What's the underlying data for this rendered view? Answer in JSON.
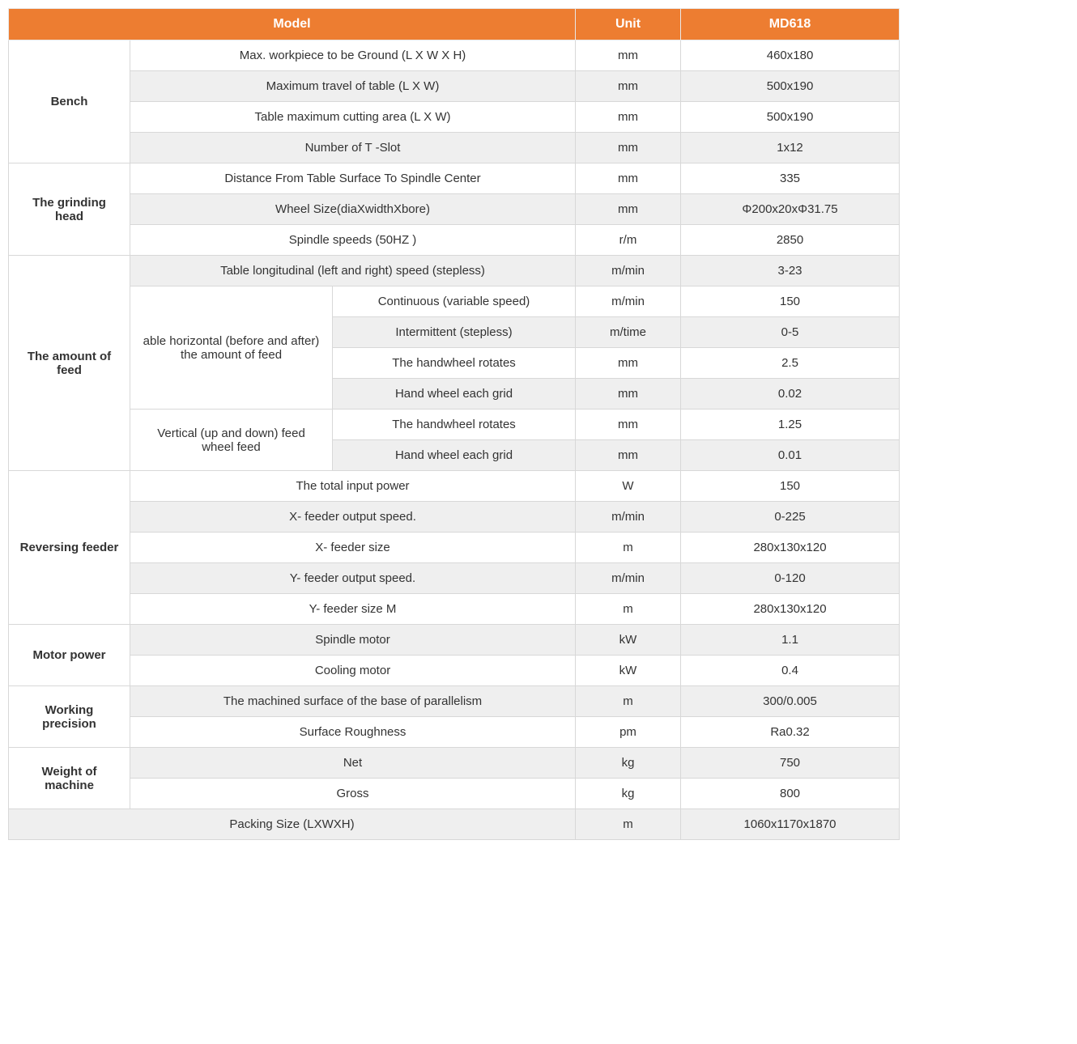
{
  "header": {
    "model": "Model",
    "unit": "Unit",
    "product": "MD618"
  },
  "colors": {
    "header_bg": "#ed7d31",
    "header_text": "#ffffff",
    "border": "#d8d8d8",
    "shaded_bg": "#efefef",
    "text": "#333333"
  },
  "sections": {
    "bench": {
      "label": "Bench",
      "rows": [
        {
          "param": "Max. workpiece to be Ground (L X W X H)",
          "unit": "mm",
          "value": "460x180",
          "shaded": false
        },
        {
          "param": "Maximum travel of table (L X W)",
          "unit": "mm",
          "value": "500x190",
          "shaded": true
        },
        {
          "param": "Table maximum cutting area (L X W)",
          "unit": "mm",
          "value": "500x190",
          "shaded": false
        },
        {
          "param": "Number of T -Slot",
          "unit": "mm",
          "value": "1x12",
          "shaded": true
        }
      ]
    },
    "grinding_head": {
      "label": "The grinding head",
      "rows": [
        {
          "param": "Distance From Table Surface To Spindle Center",
          "unit": "mm",
          "value": "335",
          "shaded": false
        },
        {
          "param": "Wheel Size(diaXwidthXbore)",
          "unit": "mm",
          "value": "Φ200x20xΦ31.75",
          "shaded": true
        },
        {
          "param": "Spindle speeds (50HZ )",
          "unit": "r/m",
          "value": "2850",
          "shaded": false
        }
      ]
    },
    "amount_of_feed": {
      "label": "The amount of feed",
      "longitudinal": {
        "param": "Table longitudinal (left and right) speed (stepless)",
        "unit": "m/min",
        "value": "3-23",
        "shaded": true
      },
      "horizontal_label": "able horizontal (before and after) the amount of feed",
      "horizontal_rows": [
        {
          "param": "Continuous (variable speed)",
          "unit": "m/min",
          "value": "150",
          "shaded": false
        },
        {
          "param": "Intermittent (stepless)",
          "unit": "m/time",
          "value": "0-5",
          "shaded": true
        },
        {
          "param": "The handwheel rotates",
          "unit": "mm",
          "value": "2.5",
          "shaded": false
        },
        {
          "param": "Hand wheel each grid",
          "unit": "mm",
          "value": "0.02",
          "shaded": true
        }
      ],
      "vertical_label": "Vertical (up and down) feed wheel feed",
      "vertical_rows": [
        {
          "param": "The handwheel rotates",
          "unit": "mm",
          "value": "1.25",
          "shaded": false
        },
        {
          "param": "Hand wheel each grid",
          "unit": "mm",
          "value": "0.01",
          "shaded": true
        }
      ]
    },
    "reversing_feeder": {
      "label": "Reversing feeder",
      "rows": [
        {
          "param": "The total input power",
          "unit": "W",
          "value": "150",
          "shaded": false
        },
        {
          "param": "X- feeder output speed.",
          "unit": "m/min",
          "value": "0-225",
          "shaded": true
        },
        {
          "param": "X- feeder size",
          "unit": "m",
          "value": "280x130x120",
          "shaded": false
        },
        {
          "param": "Y- feeder output speed.",
          "unit": "m/min",
          "value": "0-120",
          "shaded": true
        },
        {
          "param": "Y- feeder size M",
          "unit": "m",
          "value": "280x130x120",
          "shaded": false
        }
      ]
    },
    "motor_power": {
      "label": "Motor power",
      "rows": [
        {
          "param": "Spindle motor",
          "unit": "kW",
          "value": "1.1",
          "shaded": true
        },
        {
          "param": "Cooling motor",
          "unit": "kW",
          "value": "0.4",
          "shaded": false
        }
      ]
    },
    "working_precision": {
      "label": "Working precision",
      "rows": [
        {
          "param": "The machined surface of the base of parallelism",
          "unit": "m",
          "value": "300/0.005",
          "shaded": true
        },
        {
          "param": "Surface Roughness",
          "unit": "pm",
          "value": "Ra0.32",
          "shaded": false
        }
      ]
    },
    "weight": {
      "label": "Weight of machine",
      "rows": [
        {
          "param": "Net",
          "unit": "kg",
          "value": "750",
          "shaded": true
        },
        {
          "param": "Gross",
          "unit": "kg",
          "value": "800",
          "shaded": false
        }
      ]
    },
    "packing_size": {
      "param": "Packing Size (LXWXH)",
      "unit": "m",
      "value": "1060x1170x1870",
      "shaded": true
    }
  }
}
